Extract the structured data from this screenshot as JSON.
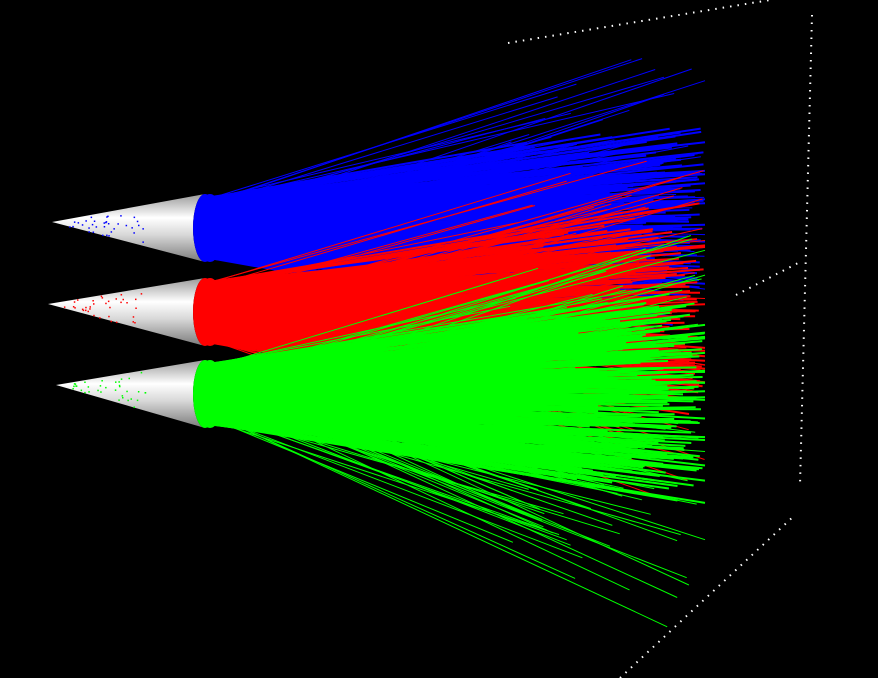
{
  "scene": {
    "background": "#000000",
    "bounding_box_color": "#ffffff",
    "cone_color": "#c8c8c8",
    "emitters": [
      {
        "name": "blue",
        "color": "#0000ff"
      },
      {
        "name": "red",
        "color": "#ff0000"
      },
      {
        "name": "green",
        "color": "#00ff00"
      }
    ]
  }
}
